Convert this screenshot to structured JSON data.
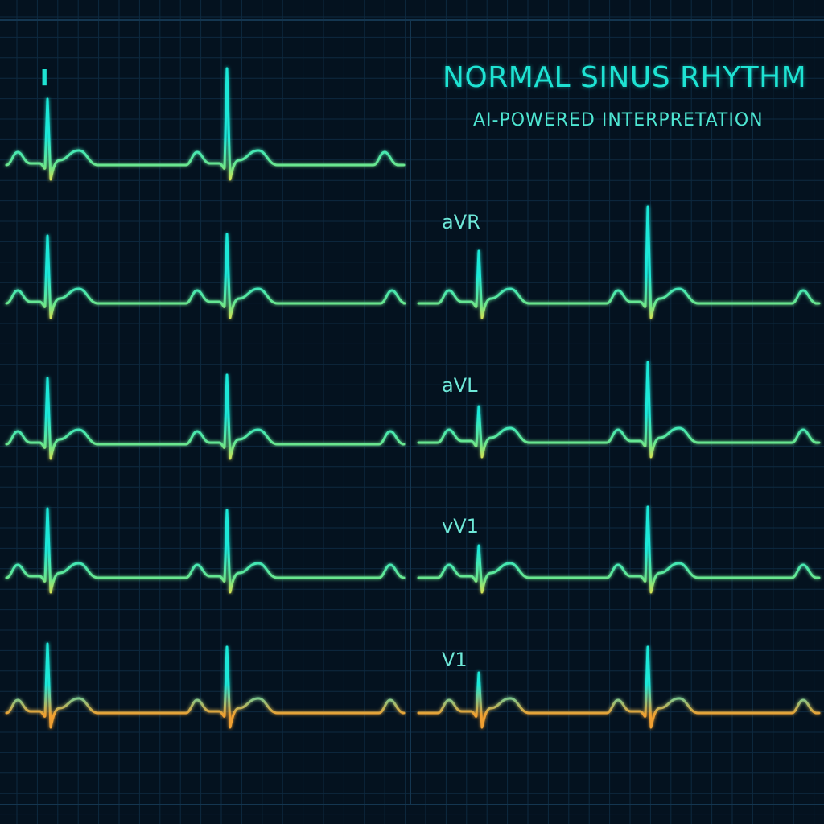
{
  "title": "NORMAL SINUS RHYTHM",
  "subtitle": "AI-POWERED INTERPRETATION",
  "leads": {
    "lead_1": "I",
    "lead_avr": "aVR",
    "lead_avl": "aVL",
    "lead_vv1": "vV1",
    "lead_v1": "V1"
  },
  "colors": {
    "background": "#04121f",
    "grid": "#0e2a40",
    "trace_top": "#1ee8d8",
    "trace_mid": "#6ee68a",
    "trace_low": "#e6e04a",
    "trace_orange": "#f0a030"
  }
}
